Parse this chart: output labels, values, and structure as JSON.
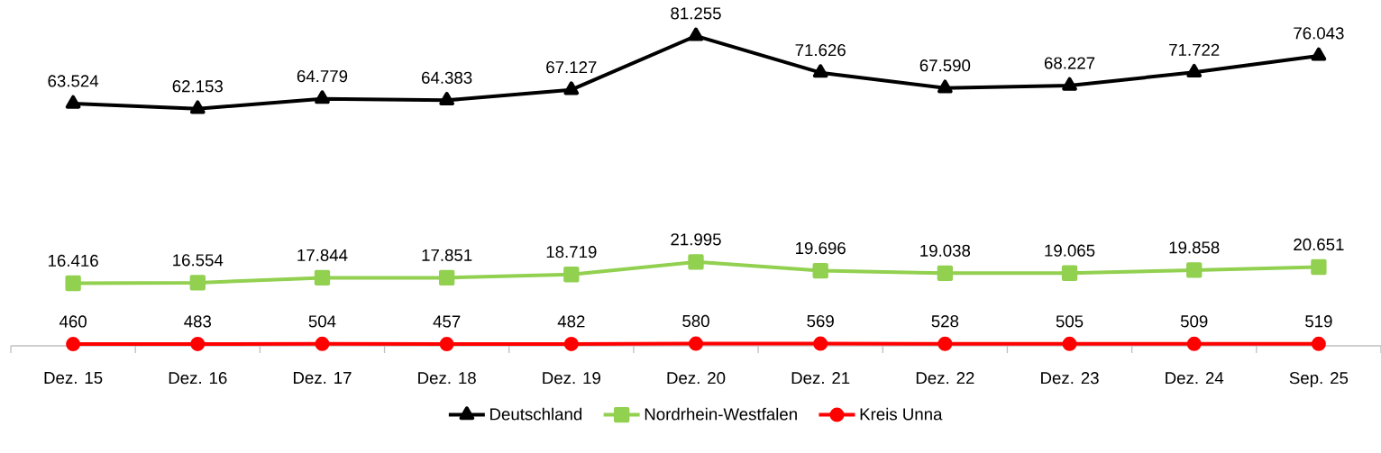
{
  "chart_data": {
    "type": "line",
    "categories": [
      "Dez. 15",
      "Dez. 16",
      "Dez. 17",
      "Dez. 18",
      "Dez. 19",
      "Dez. 20",
      "Dez. 21",
      "Dez. 22",
      "Dez. 23",
      "Dez. 24",
      "Sep. 25"
    ],
    "tick_labels": "x",
    "legend": "bottom",
    "series": [
      {
        "name": "Deutschland",
        "color": "#000000",
        "marker": "triangle",
        "values": [
          63524,
          62153,
          64779,
          64383,
          67127,
          81255,
          71626,
          67590,
          68227,
          71722,
          76043
        ],
        "value_labels": [
          "63.524",
          "62.153",
          "64.779",
          "64.383",
          "67.127",
          "81.255",
          "71.626",
          "67.590",
          "68.227",
          "71.722",
          "76.043"
        ]
      },
      {
        "name": "Nordrhein-Westfalen",
        "color": "#92d050",
        "marker": "square",
        "values": [
          16416,
          16554,
          17844,
          17851,
          18719,
          21995,
          19696,
          19038,
          19065,
          19858,
          20651
        ],
        "value_labels": [
          "16.416",
          "16.554",
          "17.844",
          "17.851",
          "18.719",
          "21.995",
          "19.696",
          "19.038",
          "19.065",
          "19.858",
          "20.651"
        ]
      },
      {
        "name": "Kreis Unna",
        "color": "#ff0000",
        "marker": "circle",
        "values": [
          460,
          483,
          504,
          457,
          482,
          580,
          569,
          528,
          505,
          509,
          519
        ],
        "value_labels": [
          "460",
          "483",
          "504",
          "457",
          "482",
          "580",
          "569",
          "528",
          "505",
          "509",
          "519"
        ]
      }
    ]
  }
}
